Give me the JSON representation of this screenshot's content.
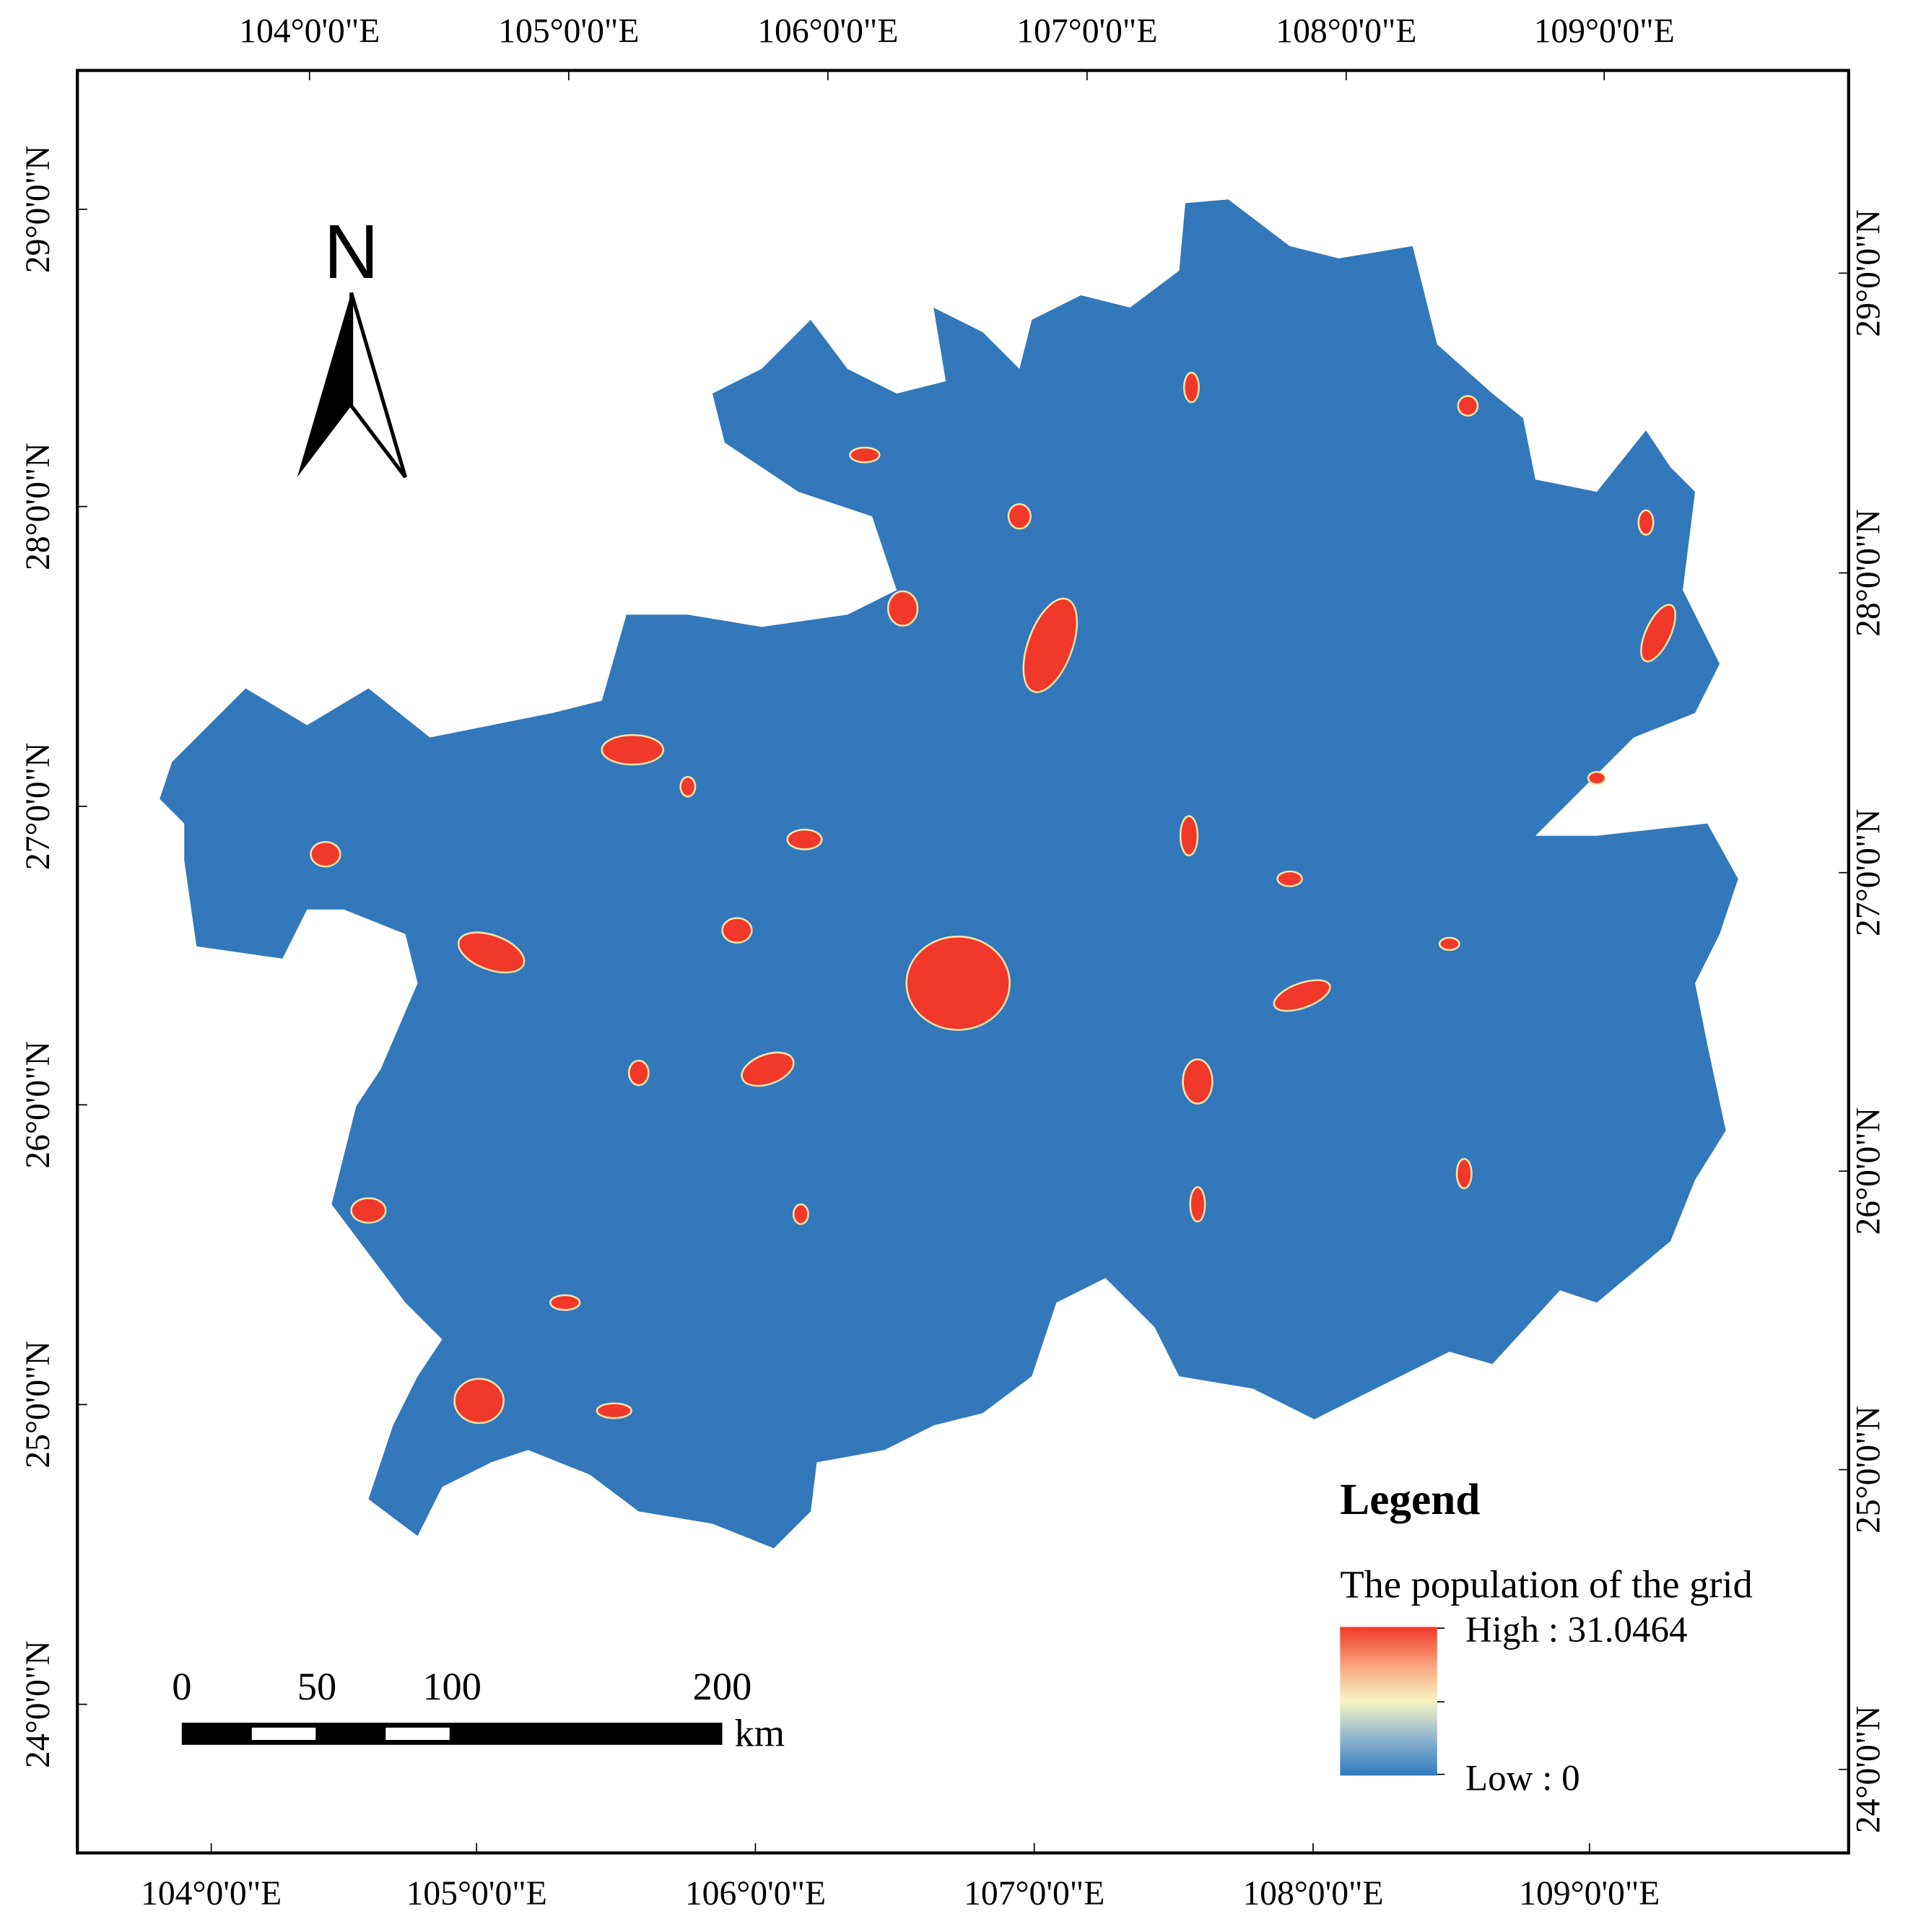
{
  "axes": {
    "top": [
      "104°0'0\"E",
      "105°0'0\"E",
      "106°0'0\"E",
      "107°0'0\"E",
      "108°0'0\"E",
      "109°0'0\"E"
    ],
    "bottom": [
      "104°0'0\"E",
      "105°0'0\"E",
      "106°0'0\"E",
      "107°0'0\"E",
      "108°0'0\"E",
      "109°0'0\"E"
    ],
    "left": [
      "29°0'0\"N",
      "28°0'0\"N",
      "27°0'0\"N",
      "26°0'0\"N",
      "25°0'0\"N",
      "24°0'0\"N"
    ],
    "right": [
      "29°0'0\"N",
      "28°0'0\"N",
      "27°0'0\"N",
      "26°0'0\"N",
      "25°0'0\"N",
      "24°0'0\"N"
    ]
  },
  "north": "N",
  "scale_bar": {
    "labels": [
      "0",
      "50",
      "100",
      "200"
    ],
    "unit": "km"
  },
  "legend": {
    "title": "Legend",
    "subtitle": "The population of the grid",
    "high": "High : 31.0464",
    "low": "Low : 0"
  }
}
